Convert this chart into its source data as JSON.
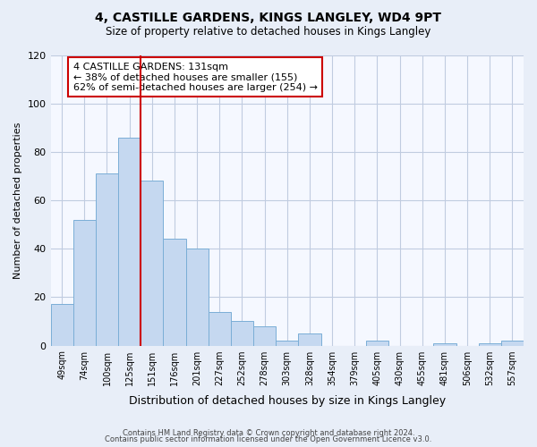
{
  "title": "4, CASTILLE GARDENS, KINGS LANGLEY, WD4 9PT",
  "subtitle": "Size of property relative to detached houses in Kings Langley",
  "xlabel": "Distribution of detached houses by size in Kings Langley",
  "ylabel": "Number of detached properties",
  "footer_line1": "Contains HM Land Registry data © Crown copyright and database right 2024.",
  "footer_line2": "Contains public sector information licensed under the Open Government Licence v3.0.",
  "bin_labels": [
    "49sqm",
    "74sqm",
    "100sqm",
    "125sqm",
    "151sqm",
    "176sqm",
    "201sqm",
    "227sqm",
    "252sqm",
    "278sqm",
    "303sqm",
    "328sqm",
    "354sqm",
    "379sqm",
    "405sqm",
    "430sqm",
    "455sqm",
    "481sqm",
    "506sqm",
    "532sqm",
    "557sqm"
  ],
  "bar_heights": [
    17,
    52,
    71,
    86,
    68,
    44,
    40,
    14,
    10,
    8,
    2,
    5,
    0,
    0,
    2,
    0,
    0,
    1,
    0,
    1,
    2
  ],
  "bar_color": "#c5d8f0",
  "bar_edge_color": "#7aaed6",
  "vline_x": 3.5,
  "vline_color": "#cc0000",
  "annotation_title": "4 CASTILLE GARDENS: 131sqm",
  "annotation_line1": "← 38% of detached houses are smaller (155)",
  "annotation_line2": "62% of semi-detached houses are larger (254) →",
  "annotation_box_color": "#ffffff",
  "annotation_box_edge": "#cc0000",
  "ylim": [
    0,
    120
  ],
  "yticks": [
    0,
    20,
    40,
    60,
    80,
    100,
    120
  ],
  "background_color": "#e8eef8",
  "plot_background_color": "#f5f8ff",
  "grid_color": "#c0cce0"
}
